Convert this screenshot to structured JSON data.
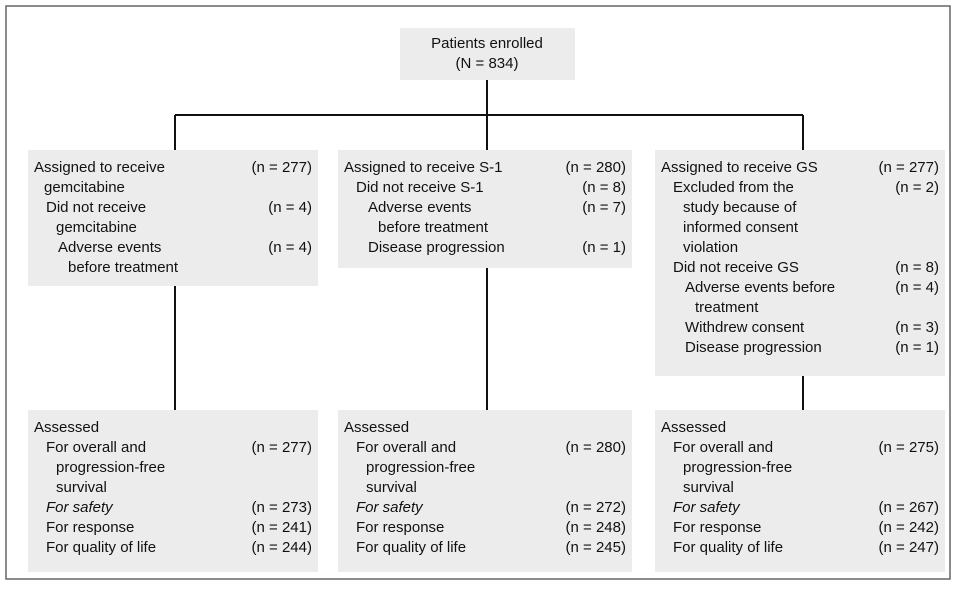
{
  "enrolled": {
    "label": "Patients enrolled",
    "n": "(N = 834)"
  },
  "arms": [
    {
      "rows": [
        {
          "lines": [
            "Assigned to receive",
            "gemcitabine"
          ],
          "n": "(n = 277)"
        },
        {
          "lines": [
            "Did not receive",
            "gemcitabine"
          ],
          "n": "(n =  4)"
        },
        {
          "lines": [
            "Adverse events",
            "before treatment"
          ],
          "n": "(n = 4)"
        }
      ],
      "assessed": {
        "title": "Assessed",
        "rows": [
          {
            "lines": [
              "For overall and",
              "progression-free",
              "survival"
            ],
            "n": "(n = 277)"
          },
          {
            "lines": [
              "For safety"
            ],
            "n": "(n = 273)"
          },
          {
            "lines": [
              "For response"
            ],
            "n": "(n = 241)"
          },
          {
            "lines": [
              "For quality of life"
            ],
            "n": "(n = 244)"
          }
        ]
      }
    },
    {
      "rows": [
        {
          "lines": [
            "Assigned to receive S-1"
          ],
          "n": "(n = 280)"
        },
        {
          "lines": [
            "Did not receive S-1"
          ],
          "n": "(n = 8)"
        },
        {
          "lines": [
            "Adverse events",
            "before treatment"
          ],
          "n": "(n = 7)"
        },
        {
          "lines": [
            "Disease progression"
          ],
          "n": "(n = 1)"
        }
      ],
      "assessed": {
        "title": "Assessed",
        "rows": [
          {
            "lines": [
              "For overall and",
              "progression-free",
              "survival"
            ],
            "n": "(n = 280)"
          },
          {
            "lines": [
              "For safety"
            ],
            "n": "(n = 272)"
          },
          {
            "lines": [
              "For response"
            ],
            "n": "(n = 248)"
          },
          {
            "lines": [
              "For quality of life"
            ],
            "n": "(n = 245)"
          }
        ]
      }
    },
    {
      "rows": [
        {
          "lines": [
            "Assigned to receive GS"
          ],
          "n": "(n = 277)"
        },
        {
          "lines": [
            "Excluded from the",
            "study because of",
            "informed consent",
            "violation"
          ],
          "n": "(n = 2)"
        },
        {
          "lines": [
            "Did not receive GS"
          ],
          "n": "(n = 8)"
        },
        {
          "lines": [
            "Adverse events before",
            "treatment"
          ],
          "n": "(n = 4)"
        },
        {
          "lines": [
            "Withdrew consent"
          ],
          "n": "(n = 3)"
        },
        {
          "lines": [
            "Disease progression"
          ],
          "n": "(n = 1)"
        }
      ],
      "assessed": {
        "title": "Assessed",
        "rows": [
          {
            "lines": [
              "For overall and",
              "progression-free",
              "survival"
            ],
            "n": "(n = 275)"
          },
          {
            "lines": [
              "For safety"
            ],
            "n": "(n = 267)"
          },
          {
            "lines": [
              "For response"
            ],
            "n": "(n = 242)"
          },
          {
            "lines": [
              "For quality of life"
            ],
            "n": "(n = 247)"
          }
        ]
      }
    }
  ]
}
